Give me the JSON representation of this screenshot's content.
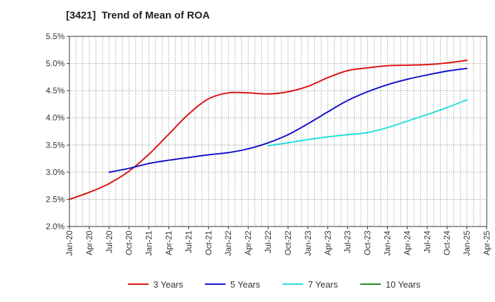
{
  "chart_data": {
    "type": "line",
    "title": "[3421]  Trend of Mean of ROA",
    "xlabel": "",
    "ylabel": "",
    "x_ticks": [
      "Jan-20",
      "Apr-20",
      "Jul-20",
      "Oct-20",
      "Jan-21",
      "Apr-21",
      "Jul-21",
      "Oct-21",
      "Jan-22",
      "Apr-22",
      "Jul-22",
      "Oct-22",
      "Jan-23",
      "Apr-23",
      "Jul-23",
      "Oct-23",
      "Jan-24",
      "Apr-24",
      "Jul-24",
      "Oct-24",
      "Jan-25",
      "Apr-25"
    ],
    "y_ticks": [
      "2.0%",
      "2.5%",
      "3.0%",
      "3.5%",
      "4.0%",
      "4.5%",
      "5.0%",
      "5.5%"
    ],
    "ylim": [
      2.0,
      5.5
    ],
    "grid": true,
    "legend_position": "bottom",
    "series": [
      {
        "name": "3 Years",
        "color": "#dd1111",
        "points": [
          [
            "Jan-20",
            2.5
          ],
          [
            "Apr-20",
            2.63
          ],
          [
            "Jul-20",
            2.79
          ],
          [
            "Oct-20",
            3.02
          ],
          [
            "Jan-21",
            3.33
          ],
          [
            "Apr-21",
            3.7
          ],
          [
            "Jul-21",
            4.07
          ],
          [
            "Oct-21",
            4.35
          ],
          [
            "Jan-22",
            4.46
          ],
          [
            "Apr-22",
            4.46
          ],
          [
            "Jul-22",
            4.44
          ],
          [
            "Oct-22",
            4.48
          ],
          [
            "Jan-23",
            4.58
          ],
          [
            "Apr-23",
            4.74
          ],
          [
            "Jul-23",
            4.87
          ],
          [
            "Oct-23",
            4.92
          ],
          [
            "Jan-24",
            4.96
          ],
          [
            "Apr-24",
            4.97
          ],
          [
            "Jul-24",
            4.98
          ],
          [
            "Oct-24",
            5.01
          ],
          [
            "Jan-25",
            5.06
          ]
        ]
      },
      {
        "name": "5 Years",
        "color": "#1111cc",
        "points": [
          [
            "Jul-20",
            3.0
          ],
          [
            "Oct-20",
            3.07
          ],
          [
            "Jan-21",
            3.16
          ],
          [
            "Apr-21",
            3.22
          ],
          [
            "Jul-21",
            3.27
          ],
          [
            "Oct-21",
            3.32
          ],
          [
            "Jan-22",
            3.36
          ],
          [
            "Apr-22",
            3.43
          ],
          [
            "Jul-22",
            3.54
          ],
          [
            "Oct-22",
            3.69
          ],
          [
            "Jan-23",
            3.89
          ],
          [
            "Apr-23",
            4.11
          ],
          [
            "Jul-23",
            4.32
          ],
          [
            "Oct-23",
            4.48
          ],
          [
            "Jan-24",
            4.61
          ],
          [
            "Apr-24",
            4.71
          ],
          [
            "Jul-24",
            4.79
          ],
          [
            "Oct-24",
            4.86
          ],
          [
            "Jan-25",
            4.91
          ]
        ]
      },
      {
        "name": "7 Years",
        "color": "#22dddd",
        "points": [
          [
            "Jul-22",
            3.49
          ],
          [
            "Oct-22",
            3.54
          ],
          [
            "Jan-23",
            3.6
          ],
          [
            "Apr-23",
            3.65
          ],
          [
            "Jul-23",
            3.69
          ],
          [
            "Oct-23",
            3.73
          ],
          [
            "Jan-24",
            3.82
          ],
          [
            "Apr-24",
            3.94
          ],
          [
            "Jul-24",
            4.06
          ],
          [
            "Oct-24",
            4.19
          ],
          [
            "Jan-25",
            4.33
          ]
        ]
      },
      {
        "name": "10 Years",
        "color": "#228822",
        "points": []
      }
    ]
  }
}
